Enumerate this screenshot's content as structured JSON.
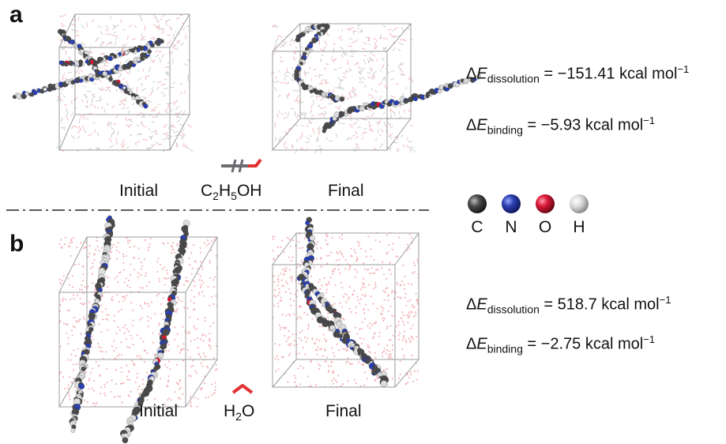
{
  "panel_a": {
    "letter": "a",
    "initial_label": "Initial",
    "final_label": "Final",
    "solvent": {
      "pre": "C",
      "s1": "2",
      "mid": "H",
      "s2": "5",
      "post": "OH"
    },
    "energies": [
      {
        "delta": "Δ",
        "E": "E",
        "sub": "dissolution",
        "value": " = −151.41 kcal mol",
        "sup": "−1"
      },
      {
        "delta": "Δ",
        "E": "E",
        "sub": "binding",
        "value": " = −5.93 kcal mol",
        "sup": "−1"
      }
    ]
  },
  "panel_b": {
    "letter": "b",
    "initial_label": "Initial",
    "final_label": "Final",
    "solvent": {
      "pre": "H",
      "s1": "2",
      "post": "O"
    },
    "energies": [
      {
        "delta": "Δ",
        "E": "E",
        "sub": "dissolution",
        "value": " = 518.7 kcal mol",
        "sup": "−1"
      },
      {
        "delta": "Δ",
        "E": "E",
        "sub": "binding",
        "value": " = −2.75 kcal mol",
        "sup": "−1"
      }
    ]
  },
  "legend": [
    {
      "label": "C",
      "color": "#4a4a4a"
    },
    {
      "label": "N",
      "color": "#2a3fb0"
    },
    {
      "label": "O",
      "color": "#d81636"
    },
    {
      "label": "H",
      "color": "#d8d8d8"
    }
  ]
}
